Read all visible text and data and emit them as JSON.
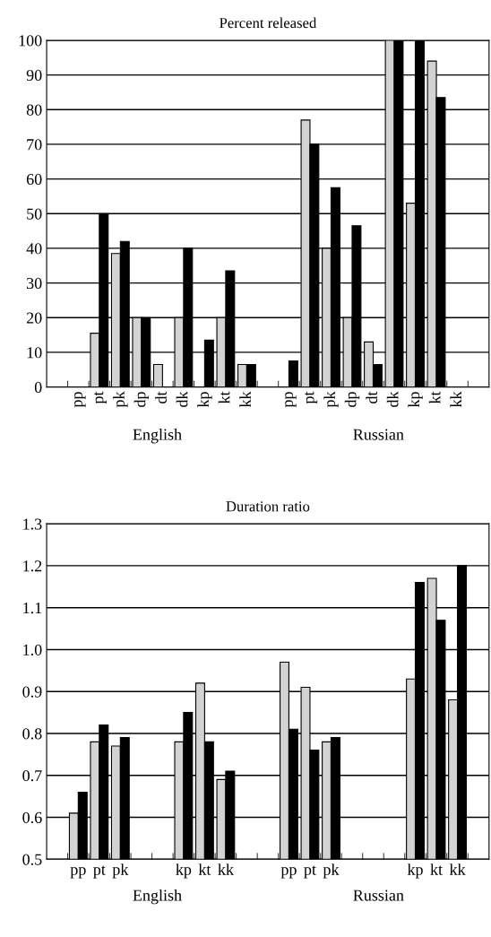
{
  "chart_data": [
    {
      "type": "bar",
      "title": "Percent released",
      "categories": [
        null,
        "pp",
        "pt",
        "pk",
        "dp",
        "dt",
        "dk",
        "kp",
        "kt",
        "kk",
        null,
        "pp",
        "pt",
        "pk",
        "dp",
        "dt",
        "dk",
        "kp",
        "kt",
        "kk",
        null
      ],
      "series": [
        {
          "color": "#d3d3d3",
          "values": [
            null,
            null,
            15.5,
            38.5,
            20,
            6.5,
            20,
            null,
            20,
            6.5,
            null,
            null,
            77,
            40,
            20,
            13,
            100,
            53,
            94,
            null,
            null
          ]
        },
        {
          "color": "#000000",
          "values": [
            null,
            null,
            50,
            42,
            20,
            null,
            40,
            13.5,
            33.5,
            6.5,
            null,
            7.5,
            70,
            57.5,
            46.5,
            6.5,
            100,
            100,
            83.5,
            null,
            null
          ]
        }
      ],
      "ylim": [
        0,
        100
      ],
      "yticks": [
        0,
        10,
        20,
        30,
        40,
        50,
        60,
        70,
        80,
        90,
        100
      ],
      "grid": "y",
      "annotations": [
        "English",
        "Russian"
      ]
    },
    {
      "type": "bar",
      "title": "Duration ratio",
      "categories": [
        null,
        "pp",
        "pt",
        "pk",
        null,
        null,
        "kp",
        "kt",
        "kk",
        null,
        null,
        "pp",
        "pt",
        "pk",
        null,
        null,
        null,
        "kp",
        "kt",
        "kk",
        null
      ],
      "series": [
        {
          "color": "#d3d3d3",
          "values": [
            null,
            0.61,
            0.78,
            0.77,
            null,
            null,
            0.78,
            0.92,
            0.69,
            null,
            null,
            0.97,
            0.91,
            0.78,
            null,
            null,
            null,
            0.93,
            1.17,
            0.88,
            null
          ]
        },
        {
          "color": "#000000",
          "values": [
            null,
            0.66,
            0.82,
            0.79,
            null,
            null,
            0.85,
            0.78,
            0.71,
            null,
            null,
            0.81,
            0.76,
            0.79,
            null,
            null,
            null,
            1.16,
            1.07,
            1.2,
            null
          ]
        }
      ],
      "ylim": [
        0.5,
        1.3
      ],
      "yticks": [
        0.5,
        0.6,
        0.7,
        0.8,
        0.9,
        {
          "value": 1.0,
          "label": "1.0"
        },
        1.1,
        1.2,
        1.3
      ],
      "grid": "y",
      "annotations": [
        "English",
        "Russian"
      ]
    }
  ]
}
